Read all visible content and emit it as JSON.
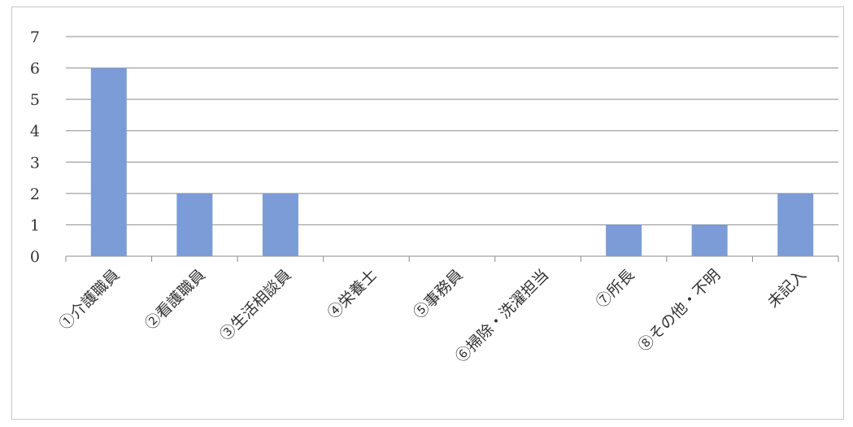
{
  "chart_data": {
    "type": "bar",
    "categories": [
      "①介護職員",
      "②看護職員",
      "③生活相談員",
      "④栄養士",
      "⑤事務員",
      "⑥掃除・洗濯担当",
      "⑦所長",
      "⑧その他・不明",
      "未記入"
    ],
    "values": [
      6,
      2,
      2,
      0,
      0,
      0,
      1,
      1,
      2
    ],
    "yticks": [
      "0",
      "1",
      "2",
      "3",
      "4",
      "5",
      "6",
      "7"
    ],
    "ylim": [
      0,
      7
    ],
    "grid": true,
    "legend": "none",
    "colors": {
      "bar": "#7b9cd6",
      "grid": "#8c8c8c"
    }
  }
}
